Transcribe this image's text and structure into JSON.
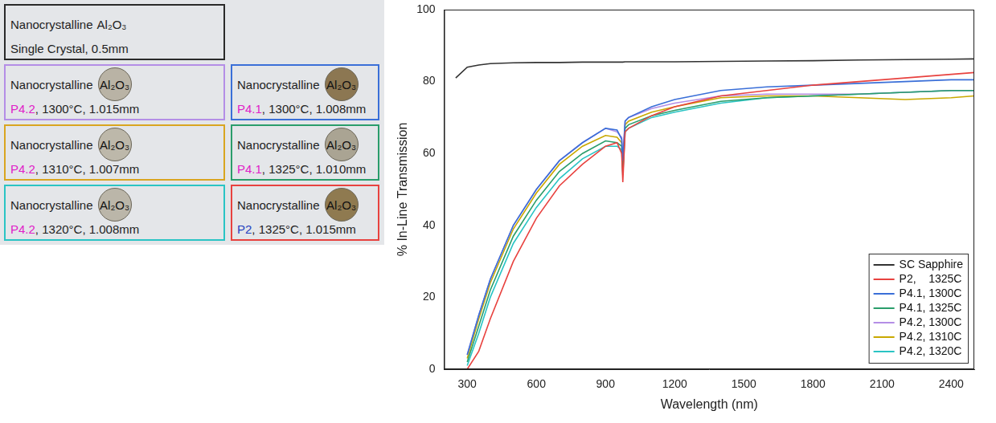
{
  "panel": {
    "rows": [
      [
        {
          "material": "Nanocrystalline",
          "formula": "Al₂O₃",
          "detail": "Single Crystal, 0.5mm",
          "color": "#2a2a2a"
        }
      ],
      [
        {
          "material": "Nanocrystalline",
          "formula": "Al₂O₃",
          "id": "P4.2",
          "id_color": "#e020c8",
          "detail": ", 1300°C, 1.015mm",
          "color": "#b48ee6",
          "disc_color": "#b9b3a5"
        },
        {
          "material": "Nanocrystalline",
          "formula": "Al₂O₃",
          "id": "P4.1",
          "id_color": "#e020c8",
          "detail": ", 1300°C, 1.008mm",
          "color": "#3a6fd8",
          "disc_color": "#8c7752"
        }
      ],
      [
        {
          "material": "Nanocrystalline",
          "formula": "Al₂O₃",
          "id": "P4.2",
          "id_color": "#e020c8",
          "detail": ", 1310°C, 1.007mm",
          "color": "#d9a520",
          "disc_color": "#bdb8aa"
        },
        {
          "material": "Nanocrystalline",
          "formula": "Al₂O₃",
          "id": "P4.1",
          "id_color": "#e020c8",
          "detail": ", 1325°C, 1.010mm",
          "color": "#2a9d6b",
          "disc_color": "#aaa493"
        }
      ],
      [
        {
          "material": "Nanocrystalline",
          "formula": "Al₂O₃",
          "id": "P4.2",
          "id_color": "#e020c8",
          "detail": ", 1320°C, 1.008mm",
          "color": "#2ac4c4",
          "disc_color": "#bbb6a9"
        },
        {
          "material": "Nanocrystalline",
          "formula": "Al₂O₃",
          "id": "P2",
          "id_color": "#1f3fbf",
          "detail": ", 1325°C, 1.015mm",
          "color": "#e8423f",
          "disc_color": "#8f7a50"
        }
      ]
    ]
  },
  "chart_data": {
    "type": "line",
    "x_label": "Wavelength (nm)",
    "y_label": "% In-Line Transmission",
    "x": [
      250,
      300,
      350,
      400,
      500,
      600,
      700,
      800,
      900,
      950,
      970,
      975,
      985,
      1000,
      1100,
      1200,
      1400,
      1600,
      1800,
      2000,
      2200,
      2400,
      2500
    ],
    "series": [
      {
        "name": "SC Sapphire",
        "color": "#333333",
        "values": [
          81,
          84,
          84.6,
          85,
          85.2,
          85.3,
          85.3,
          85.4,
          85.4,
          85.4,
          85.4,
          85.4,
          85.5,
          85.5,
          85.5,
          85.5,
          85.6,
          85.7,
          85.8,
          86,
          86.1,
          86.2,
          86.3
        ]
      },
      {
        "name": "P2,    1325C",
        "color": "#e8423f",
        "values": [
          null,
          0,
          5,
          14,
          30,
          42,
          51,
          57,
          62,
          63,
          60,
          52,
          66,
          67,
          70.5,
          73,
          76,
          77.5,
          79,
          80,
          81,
          82,
          82.5
        ]
      },
      {
        "name": "P4.1, 1300C",
        "color": "#3a6fd8",
        "values": [
          null,
          4,
          15,
          25,
          40,
          50,
          58,
          63,
          67,
          66.5,
          64,
          58,
          69,
          70,
          73,
          75,
          77.5,
          78.5,
          79,
          79.5,
          80,
          80.5,
          80.5
        ]
      },
      {
        "name": "P4.1, 1325C",
        "color": "#2a9d6b",
        "values": [
          null,
          2,
          12,
          22,
          37,
          47,
          55,
          60,
          63.5,
          63,
          62,
          55,
          67,
          68,
          70.5,
          72,
          74.5,
          75.5,
          76,
          76.5,
          77,
          77.5,
          77.5
        ]
      },
      {
        "name": "P4.2, 1300C",
        "color": "#b48ee6",
        "values": [
          null,
          4,
          15,
          25,
          40,
          50,
          58,
          63,
          67,
          66,
          64.5,
          59,
          69,
          70,
          72.5,
          74,
          76,
          76.5,
          76.5,
          76.5,
          77,
          77.5,
          77.5
        ]
      },
      {
        "name": "P4.2, 1310C",
        "color": "#c9a800",
        "values": [
          null,
          3,
          14,
          24,
          39,
          49,
          57,
          62,
          65,
          64.5,
          63,
          57,
          68,
          69,
          71.5,
          73,
          75.5,
          76,
          76,
          75.5,
          75,
          75.5,
          76
        ]
      },
      {
        "name": "P4.2, 1320C",
        "color": "#2ac4c4",
        "values": [
          null,
          1,
          10,
          20,
          35,
          45,
          53,
          58.5,
          62,
          62,
          61,
          54,
          66,
          67,
          70,
          71.5,
          74,
          75.5,
          76,
          76.5,
          77,
          77.5,
          77.5
        ]
      }
    ],
    "xlim": [
      200,
      2500
    ],
    "xticks": [
      300,
      600,
      900,
      1200,
      1500,
      1800,
      2100,
      2400
    ],
    "ylim": [
      0,
      100
    ],
    "yticks": [
      0,
      20,
      40,
      60,
      80,
      100
    ],
    "grid": false,
    "legend": "lower right"
  }
}
